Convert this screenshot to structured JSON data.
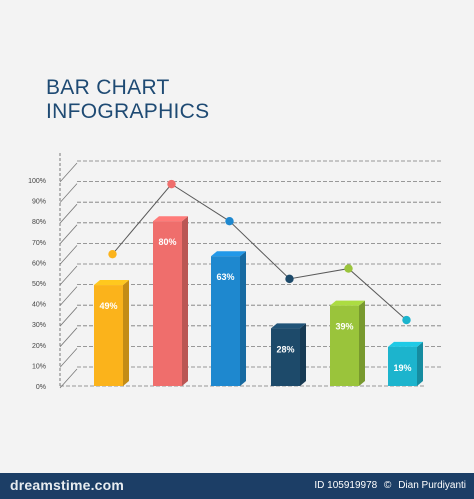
{
  "title_line1": "BAR CHART",
  "title_line2": "INFOGRAPHICS",
  "footer": {
    "watermark": "dreamstime.com",
    "id_text": "ID 105919978",
    "copyright": "©",
    "author": "Dian Purdiyanti"
  },
  "colors": {
    "background": "#f3f3f3",
    "title": "#1e4a73",
    "footer": "#1c3e66",
    "gridline": "#7a7a7a",
    "trend_line": "#5a5a5a"
  },
  "chart_data": {
    "type": "bar",
    "title": "BAR CHART INFOGRAPHICS",
    "xlabel": "",
    "ylabel": "",
    "ylim": [
      0,
      100
    ],
    "y_ticks": [
      "0%",
      "10%",
      "20%",
      "30%",
      "40%",
      "50%",
      "60%",
      "70%",
      "80%",
      "90%",
      "100%"
    ],
    "grid": true,
    "bars": [
      {
        "value": 49,
        "label": "49%",
        "color": "#fbb31b",
        "dot_value": 64
      },
      {
        "value": 80,
        "label": "80%",
        "color": "#ef6e6c",
        "dot_value": 98
      },
      {
        "value": 63,
        "label": "63%",
        "color": "#1e88cf",
        "dot_value": 80
      },
      {
        "value": 28,
        "label": "28%",
        "color": "#1d4a6a",
        "dot_value": 52
      },
      {
        "value": 39,
        "label": "39%",
        "color": "#9ac43b",
        "dot_value": 57
      },
      {
        "value": 19,
        "label": "19%",
        "color": "#1cb4cd",
        "dot_value": 32
      }
    ]
  }
}
